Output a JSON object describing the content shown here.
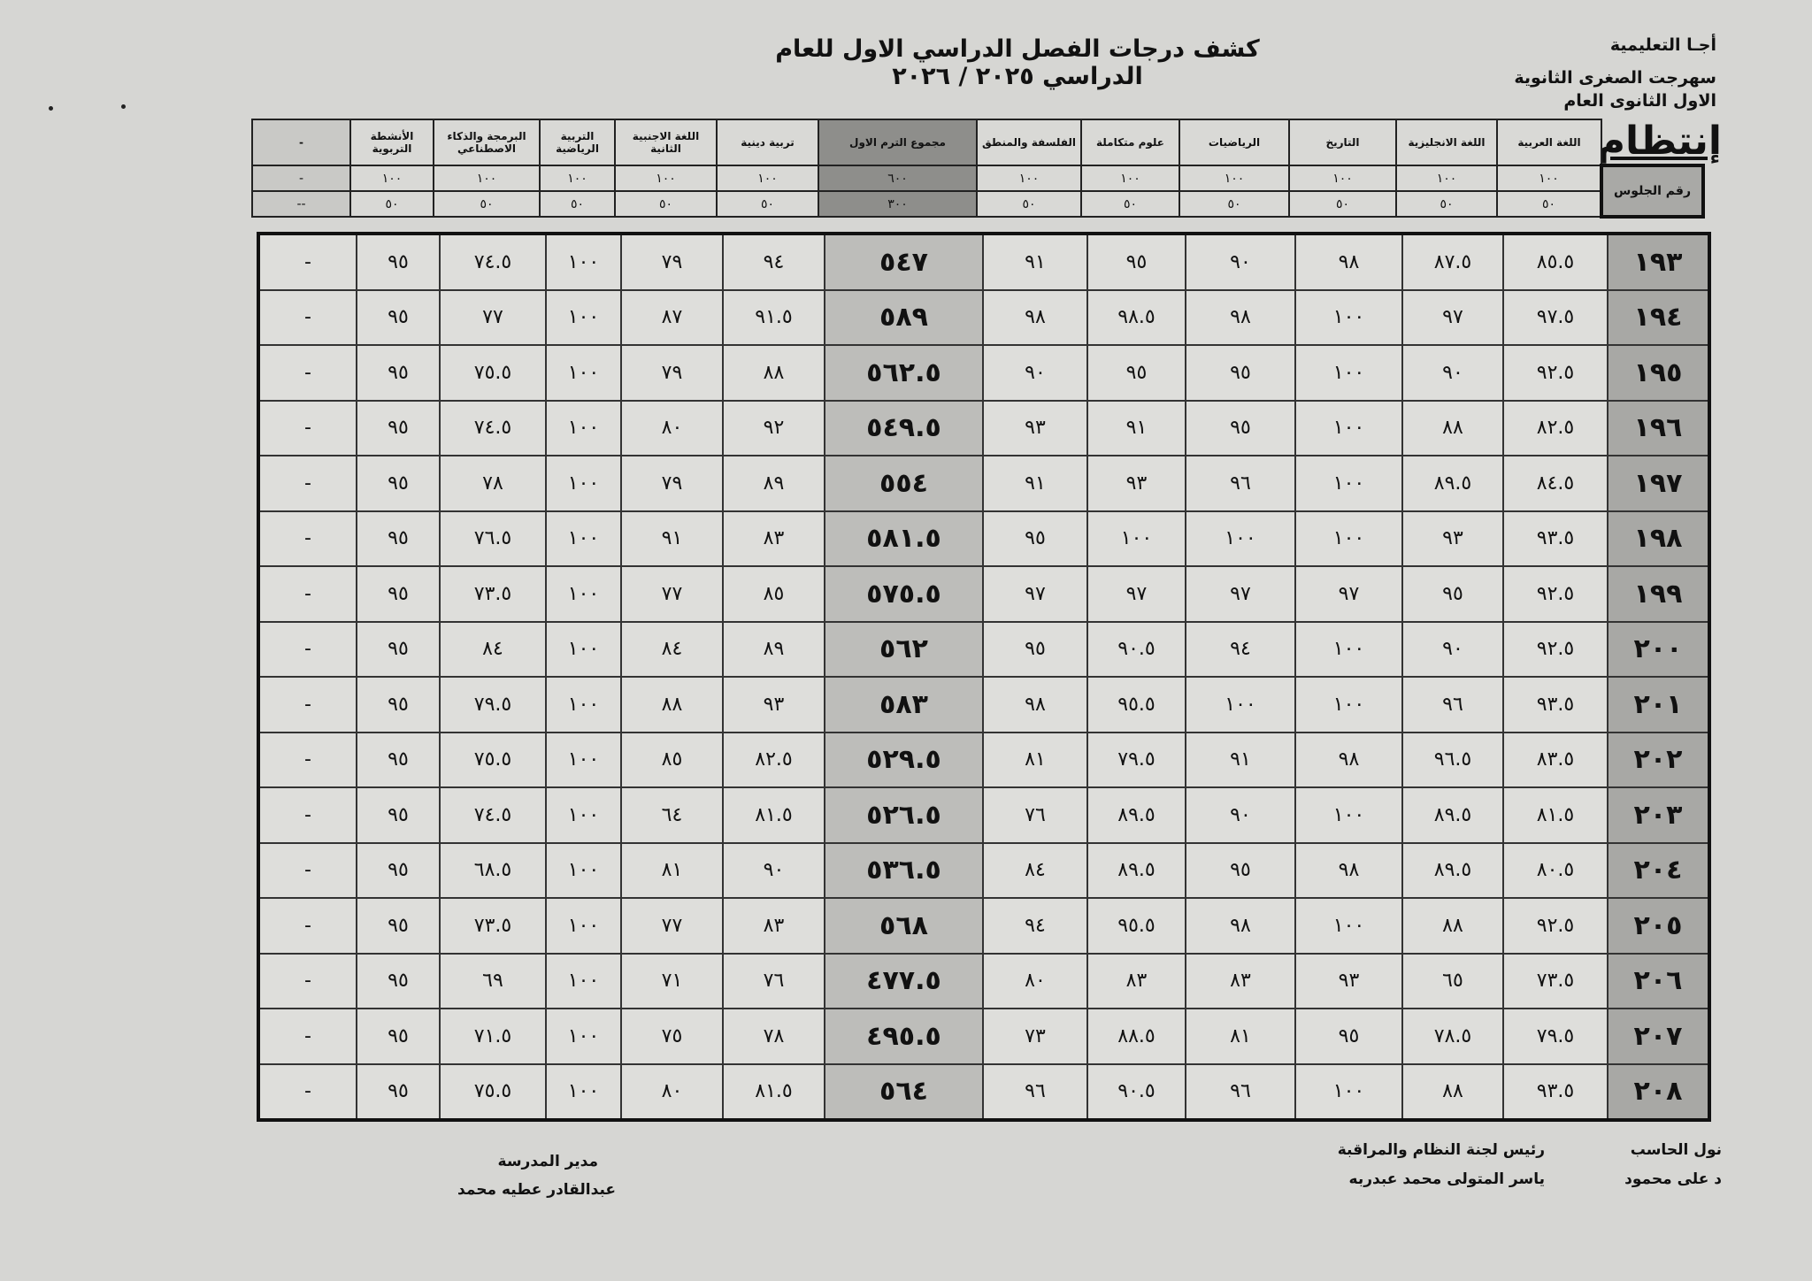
{
  "header": {
    "title": "كشف درجات الفصل الدراسي الاول للعام الدراسي ٢٠٢٥ / ٢٠٢٦",
    "admin": "أجـا التعليمية",
    "school": "سهرجت الصغرى الثانوية",
    "grade": "الاول الثانوى العام",
    "status_label": "إنتظام"
  },
  "columns": {
    "seat_label": "رقم الجلوس",
    "subjects": [
      "اللغة العربية",
      "اللغة الانجليزية",
      "التاريخ",
      "الرياضيات",
      "علوم متكاملة",
      "الفلسفة والمنطق",
      "مجموع الترم الاول",
      "تربية دينية",
      "اللغة الاجنبية الثانية",
      "التربية الرياضية",
      "البرمجة والذكاء الاصطناعي",
      "الأنشطة التربوية",
      "-"
    ],
    "max_scores": [
      "١٠٠",
      "١٠٠",
      "١٠٠",
      "١٠٠",
      "١٠٠",
      "١٠٠",
      "٦٠٠",
      "١٠٠",
      "١٠٠",
      "١٠٠",
      "١٠٠",
      "١٠٠",
      "-"
    ],
    "min_scores": [
      "٥٠",
      "٥٠",
      "٥٠",
      "٥٠",
      "٥٠",
      "٥٠",
      "٣٠٠",
      "٥٠",
      "٥٠",
      "٥٠",
      "٥٠",
      "٥٠",
      "--"
    ]
  },
  "rows": [
    [
      "١٩٣",
      "٨٥.٥",
      "٨٧.٥",
      "٩٨",
      "٩٠",
      "٩٥",
      "٩١",
      "٥٤٧",
      "٩٤",
      "٧٩",
      "١٠٠",
      "٧٤.٥",
      "٩٥",
      "-"
    ],
    [
      "١٩٤",
      "٩٧.٥",
      "٩٧",
      "١٠٠",
      "٩٨",
      "٩٨.٥",
      "٩٨",
      "٥٨٩",
      "٩١.٥",
      "٨٧",
      "١٠٠",
      "٧٧",
      "٩٥",
      "-"
    ],
    [
      "١٩٥",
      "٩٢.٥",
      "٩٠",
      "١٠٠",
      "٩٥",
      "٩٥",
      "٩٠",
      "٥٦٢.٥",
      "٨٨",
      "٧٩",
      "١٠٠",
      "٧٥.٥",
      "٩٥",
      "-"
    ],
    [
      "١٩٦",
      "٨٢.٥",
      "٨٨",
      "١٠٠",
      "٩٥",
      "٩١",
      "٩٣",
      "٥٤٩.٥",
      "٩٢",
      "٨٠",
      "١٠٠",
      "٧٤.٥",
      "٩٥",
      "-"
    ],
    [
      "١٩٧",
      "٨٤.٥",
      "٨٩.٥",
      "١٠٠",
      "٩٦",
      "٩٣",
      "٩١",
      "٥٥٤",
      "٨٩",
      "٧٩",
      "١٠٠",
      "٧٨",
      "٩٥",
      "-"
    ],
    [
      "١٩٨",
      "٩٣.٥",
      "٩٣",
      "١٠٠",
      "١٠٠",
      "١٠٠",
      "٩٥",
      "٥٨١.٥",
      "٨٣",
      "٩١",
      "١٠٠",
      "٧٦.٥",
      "٩٥",
      "-"
    ],
    [
      "١٩٩",
      "٩٢.٥",
      "٩٥",
      "٩٧",
      "٩٧",
      "٩٧",
      "٩٧",
      "٥٧٥.٥",
      "٨٥",
      "٧٧",
      "١٠٠",
      "٧٣.٥",
      "٩٥",
      "-"
    ],
    [
      "٢٠٠",
      "٩٢.٥",
      "٩٠",
      "١٠٠",
      "٩٤",
      "٩٠.٥",
      "٩٥",
      "٥٦٢",
      "٨٩",
      "٨٤",
      "١٠٠",
      "٨٤",
      "٩٥",
      "-"
    ],
    [
      "٢٠١",
      "٩٣.٥",
      "٩٦",
      "١٠٠",
      "١٠٠",
      "٩٥.٥",
      "٩٨",
      "٥٨٣",
      "٩٣",
      "٨٨",
      "١٠٠",
      "٧٩.٥",
      "٩٥",
      "-"
    ],
    [
      "٢٠٢",
      "٨٣.٥",
      "٩٦.٥",
      "٩٨",
      "٩١",
      "٧٩.٥",
      "٨١",
      "٥٢٩.٥",
      "٨٢.٥",
      "٨٥",
      "١٠٠",
      "٧٥.٥",
      "٩٥",
      "-"
    ],
    [
      "٢٠٣",
      "٨١.٥",
      "٨٩.٥",
      "١٠٠",
      "٩٠",
      "٨٩.٥",
      "٧٦",
      "٥٢٦.٥",
      "٨١.٥",
      "٦٤",
      "١٠٠",
      "٧٤.٥",
      "٩٥",
      "-"
    ],
    [
      "٢٠٤",
      "٨٠.٥",
      "٨٩.٥",
      "٩٨",
      "٩٥",
      "٨٩.٥",
      "٨٤",
      "٥٣٦.٥",
      "٩٠",
      "٨١",
      "١٠٠",
      "٦٨.٥",
      "٩٥",
      "-"
    ],
    [
      "٢٠٥",
      "٩٢.٥",
      "٨٨",
      "١٠٠",
      "٩٨",
      "٩٥.٥",
      "٩٤",
      "٥٦٨",
      "٨٣",
      "٧٧",
      "١٠٠",
      "٧٣.٥",
      "٩٥",
      "-"
    ],
    [
      "٢٠٦",
      "٧٣.٥",
      "٦٥",
      "٩٣",
      "٨٣",
      "٨٣",
      "٨٠",
      "٤٧٧.٥",
      "٧٦",
      "٧١",
      "١٠٠",
      "٦٩",
      "٩٥",
      "-"
    ],
    [
      "٢٠٧",
      "٧٩.٥",
      "٧٨.٥",
      "٩٥",
      "٨١",
      "٨٨.٥",
      "٧٣",
      "٤٩٥.٥",
      "٧٨",
      "٧٥",
      "١٠٠",
      "٧١.٥",
      "٩٥",
      "-"
    ],
    [
      "٢٠٨",
      "٩٣.٥",
      "٨٨",
      "١٠٠",
      "٩٦",
      "٩٠.٥",
      "٩٦",
      "٥٦٤",
      "٨١.٥",
      "٨٠",
      "١٠٠",
      "٧٥.٥",
      "٩٥",
      "-"
    ]
  ],
  "footer": {
    "computer_title": "نول الحاسب",
    "computer_name": "د على محمود",
    "committee_title": "رئيس لجنة النظام والمراقبة",
    "committee_name": "ياسر المتولى محمد عبدربه",
    "principal_title": "مدير المدرسة",
    "principal_name": "عبدالقادر عطيه محمد"
  }
}
